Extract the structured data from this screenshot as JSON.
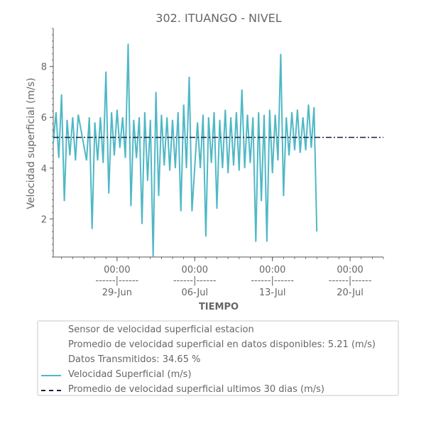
{
  "chart_data": {
    "type": "line",
    "title": "302. ITUANGO - NIVEL",
    "xlabel": "TIEMPO",
    "ylabel": "Velocidad superficial (m/s)",
    "ylim": [
      0.5,
      9.5
    ],
    "yticks": [
      2,
      4,
      6,
      8
    ],
    "xlim": [
      "2024-06-23T06:00",
      "2024-07-23T00:00"
    ],
    "xticks": [
      {
        "x": "2024-06-29T00:00",
        "line1": "00:00",
        "line2": "------|------",
        "line3": "29-Jun"
      },
      {
        "x": "2024-07-06T00:00",
        "line1": "00:00",
        "line2": "------|------",
        "line3": "06-Jul"
      },
      {
        "x": "2024-07-13T00:00",
        "line1": "00:00",
        "line2": "------|------",
        "line3": "13-Jul"
      },
      {
        "x": "2024-07-20T00:00",
        "line1": "00:00",
        "line2": "------|------",
        "line3": "20-Jul"
      }
    ],
    "series": [
      {
        "name": "Velocidad Superficial (m/s)",
        "color": "#4fb8c5",
        "style": "solid",
        "x": [
          "2024-06-23T06:00",
          "2024-06-23T12:00",
          "2024-06-23T18:00",
          "2024-06-24T00:00",
          "2024-06-24T06:00",
          "2024-06-24T12:00",
          "2024-06-24T18:00",
          "2024-06-25T00:00",
          "2024-06-25T06:00",
          "2024-06-25T12:00",
          "2024-06-26T06:00",
          "2024-06-26T12:00",
          "2024-06-26T18:00",
          "2024-06-27T00:00",
          "2024-06-27T06:00",
          "2024-06-27T12:00",
          "2024-06-27T18:00",
          "2024-06-28T00:00",
          "2024-06-28T06:00",
          "2024-06-28T12:00",
          "2024-06-28T18:00",
          "2024-06-29T00:00",
          "2024-06-29T06:00",
          "2024-06-29T12:00",
          "2024-06-29T18:00",
          "2024-06-30T00:00",
          "2024-06-30T06:00",
          "2024-06-30T12:00",
          "2024-06-30T18:00",
          "2024-07-01T00:00",
          "2024-07-01T06:00",
          "2024-07-01T12:00",
          "2024-07-01T18:00",
          "2024-07-02T00:00",
          "2024-07-02T06:00",
          "2024-07-02T12:00",
          "2024-07-02T18:00",
          "2024-07-03T00:00",
          "2024-07-03T06:00",
          "2024-07-03T12:00",
          "2024-07-03T18:00",
          "2024-07-04T00:00",
          "2024-07-04T06:00",
          "2024-07-04T12:00",
          "2024-07-04T18:00",
          "2024-07-05T00:00",
          "2024-07-05T06:00",
          "2024-07-05T12:00",
          "2024-07-05T18:00",
          "2024-07-06T06:00",
          "2024-07-06T12:00",
          "2024-07-06T18:00",
          "2024-07-07T00:00",
          "2024-07-07T06:00",
          "2024-07-07T12:00",
          "2024-07-07T18:00",
          "2024-07-08T00:00",
          "2024-07-08T06:00",
          "2024-07-08T12:00",
          "2024-07-08T18:00",
          "2024-07-09T00:00",
          "2024-07-09T06:00",
          "2024-07-09T12:00",
          "2024-07-09T18:00",
          "2024-07-10T00:00",
          "2024-07-10T06:00",
          "2024-07-10T12:00",
          "2024-07-10T18:00",
          "2024-07-11T00:00",
          "2024-07-11T06:00",
          "2024-07-11T12:00",
          "2024-07-11T18:00",
          "2024-07-12T00:00",
          "2024-07-12T06:00",
          "2024-07-12T12:00",
          "2024-07-12T18:00",
          "2024-07-13T00:00",
          "2024-07-13T06:00",
          "2024-07-13T12:00",
          "2024-07-13T18:00",
          "2024-07-14T00:00",
          "2024-07-14T06:00",
          "2024-07-14T12:00",
          "2024-07-14T18:00",
          "2024-07-15T00:00",
          "2024-07-15T06:00",
          "2024-07-15T12:00",
          "2024-07-15T18:00",
          "2024-07-16T00:00",
          "2024-07-16T06:00",
          "2024-07-16T12:00",
          "2024-07-16T18:00",
          "2024-07-17T00:00"
        ],
        "y": [
          5.0,
          6.2,
          4.4,
          6.9,
          2.7,
          5.9,
          4.5,
          6.0,
          4.3,
          6.1,
          4.3,
          6.0,
          1.6,
          5.8,
          4.3,
          6.0,
          4.2,
          7.8,
          3.0,
          6.2,
          4.5,
          6.3,
          4.8,
          6.0,
          4.4,
          8.9,
          2.5,
          5.9,
          4.4,
          6.0,
          1.8,
          6.2,
          3.5,
          5.9,
          0.5,
          7.0,
          2.9,
          6.1,
          4.1,
          6.0,
          3.9,
          5.9,
          4.0,
          6.2,
          2.3,
          6.5,
          4.0,
          7.6,
          2.3,
          5.8,
          4.0,
          6.1,
          1.3,
          6.0,
          4.2,
          6.2,
          2.4,
          5.9,
          4.0,
          6.3,
          3.8,
          6.0,
          4.1,
          6.2,
          3.9,
          7.1,
          4.0,
          6.1,
          4.2,
          6.0,
          1.1,
          6.2,
          2.7,
          6.1,
          1.1,
          6.3,
          3.8,
          6.1,
          4.3,
          8.5,
          2.9,
          6.0,
          4.5,
          6.2,
          4.7,
          6.3,
          4.6,
          6.0,
          4.7,
          6.5,
          4.8,
          6.4,
          1.5
        ]
      },
      {
        "name": "Promedio de velocidad superficial ultimos 30 dias (m/s)",
        "color": "#1c1c3a",
        "style": "dashdot",
        "x": [
          "2024-06-23T06:00",
          "2024-07-23T00:00"
        ],
        "y": [
          5.21,
          5.21
        ]
      }
    ],
    "legend": {
      "placement": "bottom",
      "text_entries": [
        "Sensor de velocidad superficial estacion",
        "Promedio de velocidad superficial en datos disponibles: 5.21 (m/s)",
        "Datos Transmitidos: 34.65 %"
      ],
      "series_entries": [
        "Velocidad Superficial (m/s)",
        "Promedio de velocidad superficial ultimos 30 dias (m/s)"
      ]
    },
    "grid": false
  }
}
